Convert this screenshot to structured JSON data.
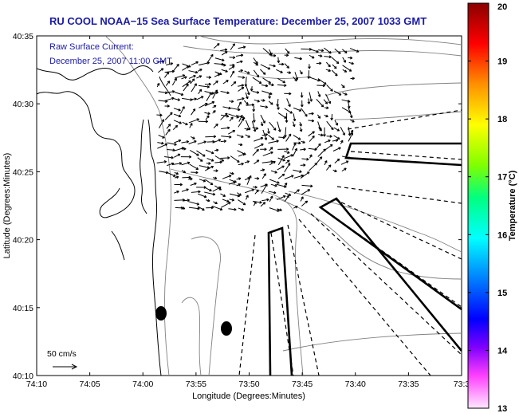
{
  "title": "RU COOL  NOAA−15  Sea Surface Temperature:  December 25, 2007 1033 GMT",
  "current_label": "Raw Surface Current:",
  "current_time": "December 25, 2007 11:00 GMT",
  "scale_label": "50 cm/s",
  "x_axis_label": "Longitude (Degrees:Minutes)",
  "y_axis_label": "Latitude (Degrees:Minutes)",
  "x_ticks": [
    "74:10",
    "74:05",
    "74:00",
    "73:55",
    "73:50",
    "73:45",
    "73:40",
    "73:35",
    "73:3"
  ],
  "y_ticks": [
    "40:35",
    "40:30",
    "40:25",
    "40:20",
    "40:15",
    "40:10"
  ],
  "colorbar": {
    "label": "Temperature (°C)",
    "ticks": [
      "20",
      "19",
      "18",
      "17",
      "16",
      "15",
      "14",
      "13"
    ],
    "range": [
      13,
      20
    ],
    "colors": [
      "#8b0000",
      "#ff0000",
      "#ff8000",
      "#ffff00",
      "#80ff00",
      "#00ff80",
      "#00ffff",
      "#0080ff",
      "#0000ff",
      "#8000ff",
      "#ff00ff",
      "#ffe0ff"
    ]
  },
  "colors": {
    "title": "#1a1aa6",
    "contour": "#808080",
    "coast": "#000000"
  }
}
